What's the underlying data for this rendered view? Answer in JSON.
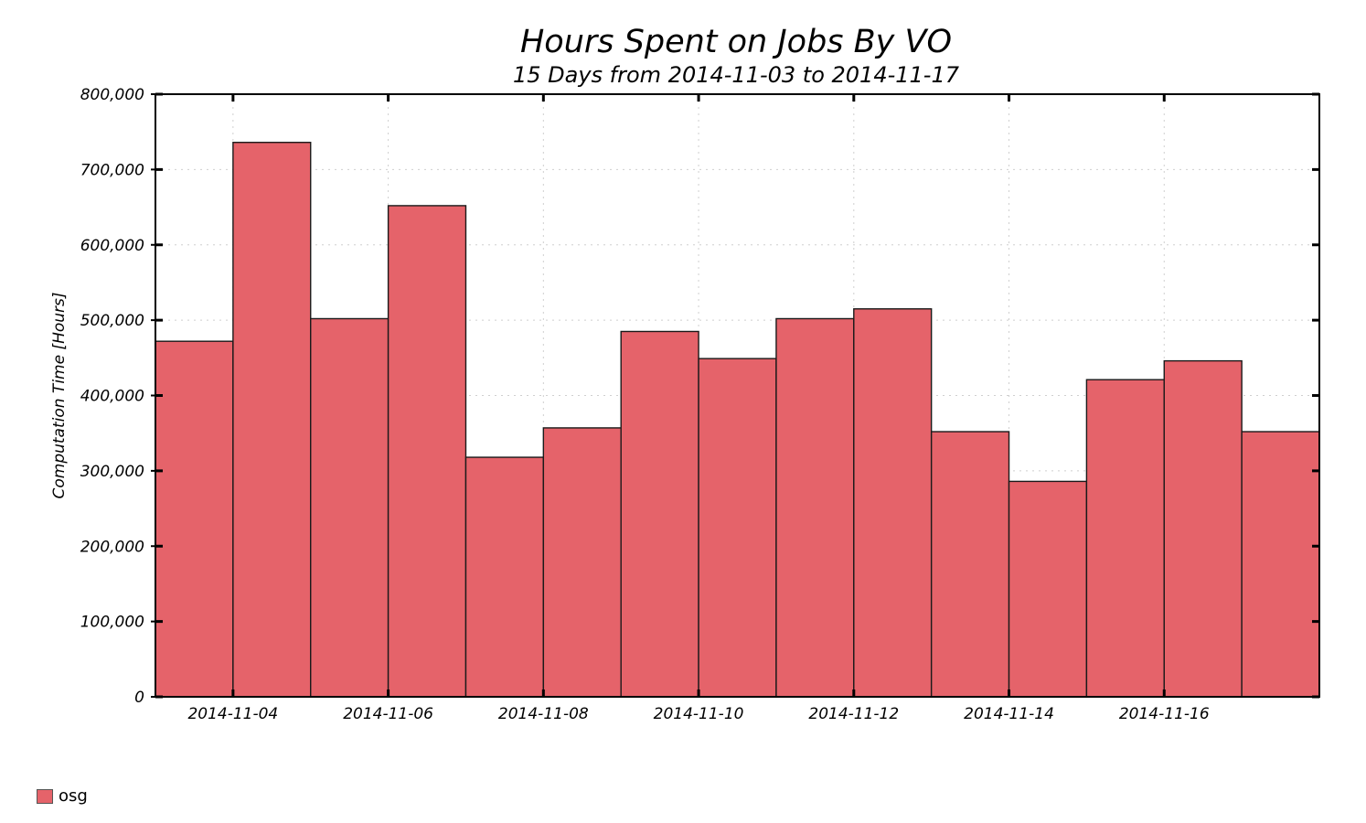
{
  "chart_data": {
    "type": "bar",
    "title": "Hours Spent on Jobs By VO",
    "subtitle": "15 Days from 2014-11-03 to 2014-11-17",
    "ylabel": "Computation Time [Hours]",
    "xlabel": "",
    "ylim": [
      0,
      800000
    ],
    "yticks": [
      0,
      100000,
      200000,
      300000,
      400000,
      500000,
      600000,
      700000,
      800000
    ],
    "ytick_labels": [
      "0",
      "100,000",
      "200,000",
      "300,000",
      "400,000",
      "500,000",
      "600,000",
      "700,000",
      "800,000"
    ],
    "categories": [
      "2014-11-03",
      "2014-11-04",
      "2014-11-05",
      "2014-11-06",
      "2014-11-07",
      "2014-11-08",
      "2014-11-09",
      "2014-11-10",
      "2014-11-11",
      "2014-11-12",
      "2014-11-13",
      "2014-11-14",
      "2014-11-15",
      "2014-11-16",
      "2014-11-17"
    ],
    "xtick_labels": [
      "2014-11-04",
      "2014-11-06",
      "2014-11-08",
      "2014-11-10",
      "2014-11-12",
      "2014-11-14",
      "2014-11-16"
    ],
    "series": [
      {
        "name": "osg",
        "color": "#e5636a",
        "values": [
          472000,
          736000,
          502000,
          652000,
          318000,
          357000,
          485000,
          449000,
          502000,
          515000,
          352000,
          286000,
          421000,
          446000,
          352000
        ]
      }
    ],
    "grid": true,
    "legend_position": "bottom-left"
  }
}
